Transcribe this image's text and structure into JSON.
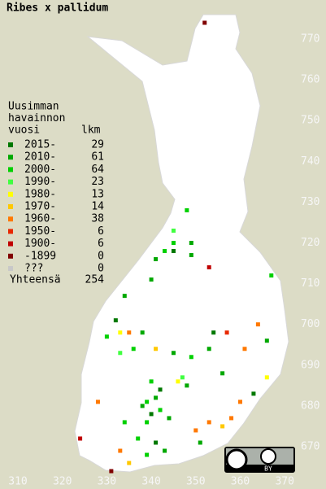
{
  "title": "Ribes x pallidum",
  "legend": {
    "heading": [
      "Uusimman",
      "havainnon",
      "vuosi"
    ],
    "count_heading": "lkm",
    "rows": [
      {
        "label": "2015-",
        "count": 29,
        "color": "#007800"
      },
      {
        "label": "2010-",
        "count": 61,
        "color": "#00a800"
      },
      {
        "label": "2000-",
        "count": 64,
        "color": "#00d000"
      },
      {
        "label": "1990-",
        "count": 23,
        "color": "#40ff40"
      },
      {
        "label": "1980-",
        "count": 13,
        "color": "#ffff00"
      },
      {
        "label": "1970-",
        "count": 14,
        "color": "#ffc800"
      },
      {
        "label": "1960-",
        "count": 38,
        "color": "#ff7800"
      },
      {
        "label": "1950-",
        "count": 6,
        "color": "#e82800"
      },
      {
        "label": "1900-",
        "count": 6,
        "color": "#c00000"
      },
      {
        "label": "-1899",
        "count": 0,
        "color": "#800000"
      },
      {
        "label": "???",
        "count": 0,
        "color": "#c8c8c8"
      }
    ],
    "total_label": "Yhteensä",
    "total": 254
  },
  "axes": {
    "yticks": [
      770,
      760,
      750,
      740,
      730,
      720,
      710,
      700,
      690,
      680,
      670
    ],
    "xticks": [
      310,
      320,
      330,
      340,
      350,
      360,
      370
    ]
  },
  "squares": [
    [
      352,
      774,
      9
    ],
    [
      348,
      728,
      2
    ],
    [
      345,
      723,
      3
    ],
    [
      345,
      720,
      2
    ],
    [
      349,
      720,
      1
    ],
    [
      345,
      718,
      0
    ],
    [
      341,
      716,
      1
    ],
    [
      343,
      718,
      2
    ],
    [
      340,
      711,
      1
    ],
    [
      353,
      714,
      8
    ],
    [
      349,
      717,
      1
    ],
    [
      367,
      712,
      2
    ],
    [
      334,
      707,
      1
    ],
    [
      332,
      701,
      0
    ],
    [
      333,
      698,
      4
    ],
    [
      335,
      698,
      6
    ],
    [
      330,
      697,
      2
    ],
    [
      338,
      698,
      1
    ],
    [
      354,
      698,
      0
    ],
    [
      357,
      698,
      7
    ],
    [
      364,
      700,
      6
    ],
    [
      366,
      696,
      1
    ],
    [
      336,
      694,
      2
    ],
    [
      333,
      693,
      3
    ],
    [
      341,
      694,
      5
    ],
    [
      345,
      693,
      1
    ],
    [
      349,
      692,
      2
    ],
    [
      353,
      694,
      1
    ],
    [
      361,
      694,
      6
    ],
    [
      366,
      687,
      4
    ],
    [
      347,
      687,
      3
    ],
    [
      340,
      686,
      2
    ],
    [
      348,
      685,
      1
    ],
    [
      342,
      684,
      0
    ],
    [
      339,
      681,
      2
    ],
    [
      341,
      682,
      1
    ],
    [
      340,
      678,
      0
    ],
    [
      339,
      676,
      2
    ],
    [
      344,
      677,
      1
    ],
    [
      337,
      672,
      2
    ],
    [
      341,
      671,
      0
    ],
    [
      343,
      669,
      1
    ],
    [
      339,
      668,
      2
    ],
    [
      335,
      666,
      5
    ],
    [
      333,
      669,
      6
    ],
    [
      328,
      681,
      6
    ],
    [
      324,
      672,
      8
    ],
    [
      350,
      674,
      6
    ],
    [
      353,
      676,
      6
    ],
    [
      356,
      675,
      5
    ],
    [
      360,
      681,
      6
    ],
    [
      363,
      683,
      0
    ],
    [
      356,
      688,
      1
    ],
    [
      334,
      676,
      2
    ],
    [
      331,
      664,
      9
    ],
    [
      338,
      680,
      1
    ],
    [
      342,
      679,
      2
    ],
    [
      346,
      686,
      4
    ],
    [
      351,
      671,
      1
    ],
    [
      358,
      677,
      6
    ]
  ],
  "badge": "BY"
}
